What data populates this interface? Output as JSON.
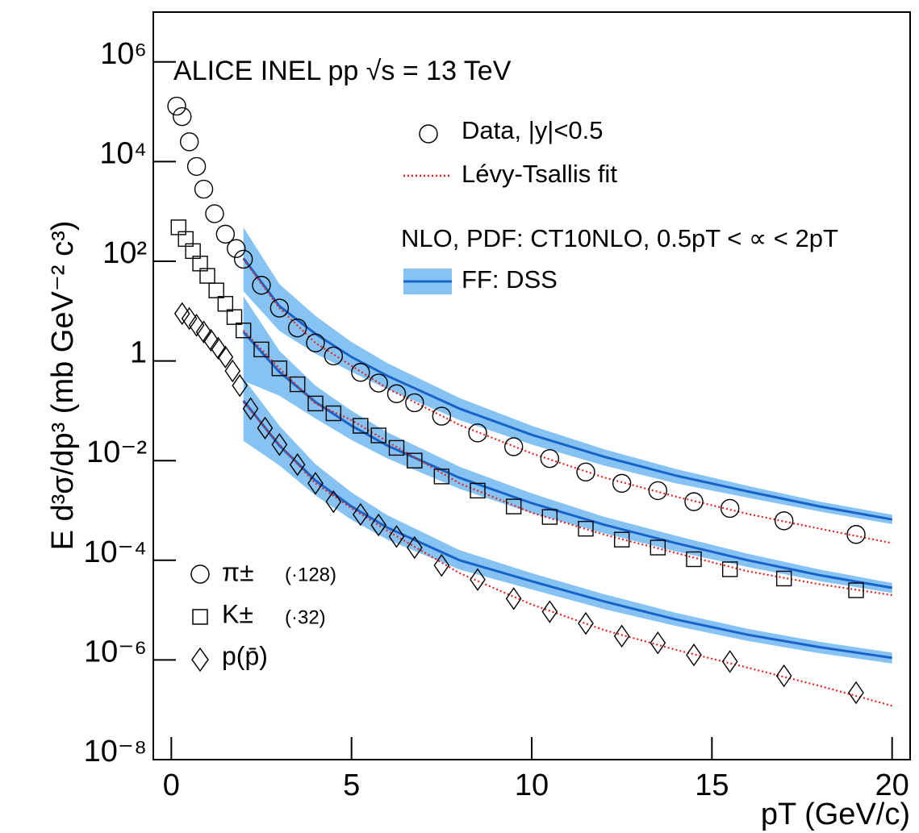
{
  "chart_data": {
    "type": "scatter",
    "title": "ALICE INEL pp √s = 13 TeV",
    "x_label": "pT (GeV/c)",
    "y_label": "E d³σ/dp³ (mb GeV⁻² c³)",
    "xlim": [
      -0.5,
      20.5
    ],
    "ylim": [
      1e-08,
      10000000.0
    ],
    "log_y": true,
    "xticks": [
      0,
      5,
      10,
      15,
      20
    ],
    "yticks": [
      {
        "value": 1e-08,
        "label": "10⁻⁸"
      },
      {
        "value": 1e-06,
        "label": "10⁻⁶"
      },
      {
        "value": 0.0001,
        "label": "10⁻⁴"
      },
      {
        "value": 0.01,
        "label": "10⁻²"
      },
      1,
      {
        "value": 100,
        "label": "10²"
      },
      {
        "value": 10000,
        "label": "10⁴"
      },
      {
        "value": 1000000,
        "label": "10⁶"
      }
    ],
    "legend": {
      "data": "Data, |y|<0.5",
      "fit": "Lévy-Tsallis fit",
      "nlo": "NLO, PDF: CT10NLO, 0.5pT < ∝ < 2pT",
      "ff": "FF: DSS"
    },
    "fit_color": "#e8211d",
    "nlo_color": "#1763c9",
    "band_color": "#86c3f2",
    "curve_x": [
      2,
      3,
      4,
      5,
      6,
      8,
      10,
      12,
      14,
      16,
      18,
      20
    ],
    "series": [
      {
        "name": "π±",
        "scale": "(·128)",
        "marker": "circle",
        "x": [
          0.15,
          0.3,
          0.5,
          0.7,
          0.9,
          1.2,
          1.5,
          1.8,
          2.0,
          2.5,
          3.0,
          3.5,
          4.0,
          4.5,
          5.25,
          5.75,
          6.25,
          6.75,
          7.5,
          8.5,
          9.5,
          10.5,
          11.5,
          12.5,
          13.5,
          14.5,
          15.5,
          17,
          19
        ],
        "values": [
          130000,
          80000,
          25000,
          8000,
          2800,
          900,
          350,
          180,
          110,
          33,
          11.5,
          4.6,
          2.3,
          1.26,
          0.59,
          0.36,
          0.22,
          0.145,
          0.078,
          0.036,
          0.019,
          0.011,
          0.0059,
          0.0035,
          0.0025,
          0.0015,
          0.0011,
          0.00062,
          0.00033
        ],
        "fit": [
          110,
          11.5,
          2.3,
          0.8,
          0.28,
          0.052,
          0.014,
          0.0046,
          0.0019,
          0.00085,
          0.00043,
          0.00022
        ],
        "nlo": [
          115,
          12.6,
          3.5,
          1.2,
          0.5,
          0.11,
          0.033,
          0.012,
          0.005,
          0.0024,
          0.0012,
          0.00066
        ],
        "nlo_upper": [
          480,
          35,
          8,
          2.4,
          0.9,
          0.18,
          0.05,
          0.017,
          0.0068,
          0.0031,
          0.0015,
          0.00082
        ],
        "nlo_lower": [
          25,
          4,
          1.4,
          0.6,
          0.27,
          0.065,
          0.021,
          0.008,
          0.0035,
          0.0018,
          0.00095,
          0.00053
        ]
      },
      {
        "name": "K±",
        "scale": "(·32)",
        "marker": "square",
        "x": [
          0.2,
          0.4,
          0.6,
          0.8,
          1.0,
          1.25,
          1.5,
          1.75,
          2.0,
          2.5,
          3.0,
          3.5,
          4.0,
          4.5,
          5.25,
          5.75,
          6.25,
          6.75,
          7.5,
          8.5,
          9.5,
          10.5,
          11.5,
          12.5,
          13.5,
          14.5,
          15.5,
          17,
          19
        ],
        "values": [
          480,
          280,
          160,
          90,
          51,
          26,
          14,
          7.6,
          4.1,
          1.7,
          0.71,
          0.34,
          0.14,
          0.089,
          0.05,
          0.032,
          0.018,
          0.01,
          0.0048,
          0.0025,
          0.0012,
          0.00074,
          0.00043,
          0.00026,
          0.00018,
          0.000105,
          6.6e-05,
          4.3e-05,
          2.5e-05
        ],
        "fit": [
          4.1,
          0.71,
          0.14,
          0.065,
          0.024,
          0.0035,
          0.0009,
          0.00033,
          0.00014,
          6e-05,
          3.3e-05,
          2e-05
        ],
        "nlo": [
          3.8,
          0.6,
          0.15,
          0.05,
          0.02,
          0.0045,
          0.0014,
          0.00052,
          0.00022,
          0.0001,
          5e-05,
          2.8e-05
        ],
        "nlo_upper": [
          20,
          1.6,
          0.32,
          0.1,
          0.037,
          0.0075,
          0.0022,
          0.00075,
          0.00031,
          0.000135,
          6.5e-05,
          3.5e-05
        ],
        "nlo_lower": [
          0.4,
          0.2,
          0.07,
          0.026,
          0.011,
          0.0027,
          0.00088,
          0.00035,
          0.00015,
          7.3e-05,
          3.8e-05,
          2.2e-05
        ]
      },
      {
        "name": "p(p̄)",
        "marker": "diamond",
        "x": [
          0.3,
          0.5,
          0.7,
          0.9,
          1.1,
          1.3,
          1.5,
          1.7,
          1.9,
          2.2,
          2.6,
          3.0,
          3.5,
          4.0,
          4.5,
          5.25,
          5.75,
          6.25,
          6.75,
          7.5,
          8.5,
          9.5,
          10.5,
          11.5,
          12.5,
          13.5,
          14.5,
          15.5,
          17,
          19
        ],
        "values": [
          8.9,
          7.1,
          5.2,
          3.8,
          2.6,
          1.8,
          1.2,
          0.63,
          0.32,
          0.11,
          0.045,
          0.021,
          0.0083,
          0.0035,
          0.0015,
          0.00083,
          0.00051,
          0.0003,
          0.00018,
          7.9e-05,
          4.1e-05,
          1.7e-05,
          9.3e-06,
          5.4e-06,
          3e-06,
          2.2e-06,
          1.26e-06,
          9.3e-07,
          4.8e-07,
          2.2e-07
        ],
        "fit": [
          0.15,
          0.021,
          0.0035,
          0.0011,
          0.00039,
          5.5e-05,
          1.3e-05,
          4e-06,
          1.6e-06,
          7e-07,
          3e-07,
          1.2e-07
        ],
        "nlo": [
          0.16,
          0.02,
          0.004,
          0.0012,
          0.00045,
          0.0001,
          3.8e-05,
          1.5e-05,
          6.5e-06,
          3.2e-06,
          1.8e-06,
          1.1e-06
        ],
        "nlo_upper": [
          0.45,
          0.05,
          0.0085,
          0.0023,
          0.0008,
          0.00016,
          5.5e-05,
          2.1e-05,
          8.8e-06,
          4.2e-06,
          2.3e-06,
          1.4e-06
        ],
        "nlo_lower": [
          0.025,
          0.008,
          0.002,
          0.00065,
          0.00026,
          6.5e-05,
          2.6e-05,
          1.05e-05,
          4.8e-06,
          2.4e-06,
          1.35e-06,
          8.5e-07
        ]
      }
    ]
  }
}
